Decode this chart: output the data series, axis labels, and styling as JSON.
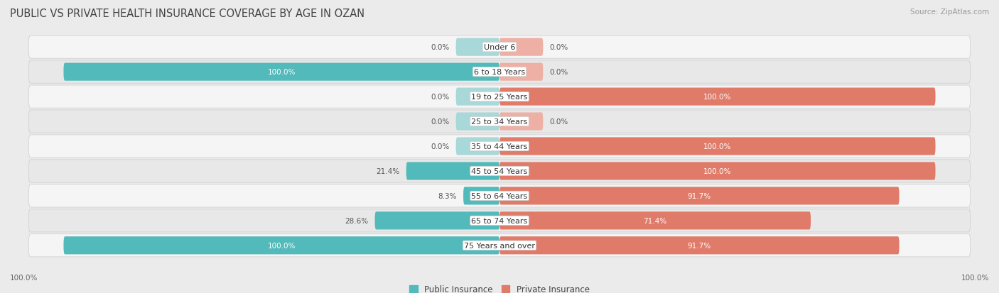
{
  "title": "PUBLIC VS PRIVATE HEALTH INSURANCE COVERAGE BY AGE IN OZAN",
  "source": "Source: ZipAtlas.com",
  "categories": [
    "Under 6",
    "6 to 18 Years",
    "19 to 25 Years",
    "25 to 34 Years",
    "35 to 44 Years",
    "45 to 54 Years",
    "55 to 64 Years",
    "65 to 74 Years",
    "75 Years and over"
  ],
  "public_values": [
    0.0,
    100.0,
    0.0,
    0.0,
    0.0,
    21.4,
    8.3,
    28.6,
    100.0
  ],
  "private_values": [
    0.0,
    0.0,
    100.0,
    0.0,
    100.0,
    100.0,
    91.7,
    71.4,
    91.7
  ],
  "public_color": "#52baba",
  "public_color_pale": "#a8d8d8",
  "private_color": "#e07b6a",
  "private_color_pale": "#eeb0a5",
  "public_label": "Public Insurance",
  "private_label": "Private Insurance",
  "bg_color": "#ebebeb",
  "row_bg_light": "#f5f5f5",
  "row_bg_dark": "#e8e8e8",
  "label_white": "#ffffff",
  "label_dark": "#555555",
  "axis_label_left": "100.0%",
  "axis_label_right": "100.0%",
  "title_fontsize": 10.5,
  "source_fontsize": 7.5,
  "bar_fontsize": 7.5,
  "cat_fontsize": 8,
  "legend_fontsize": 8.5,
  "stub_size": 10
}
